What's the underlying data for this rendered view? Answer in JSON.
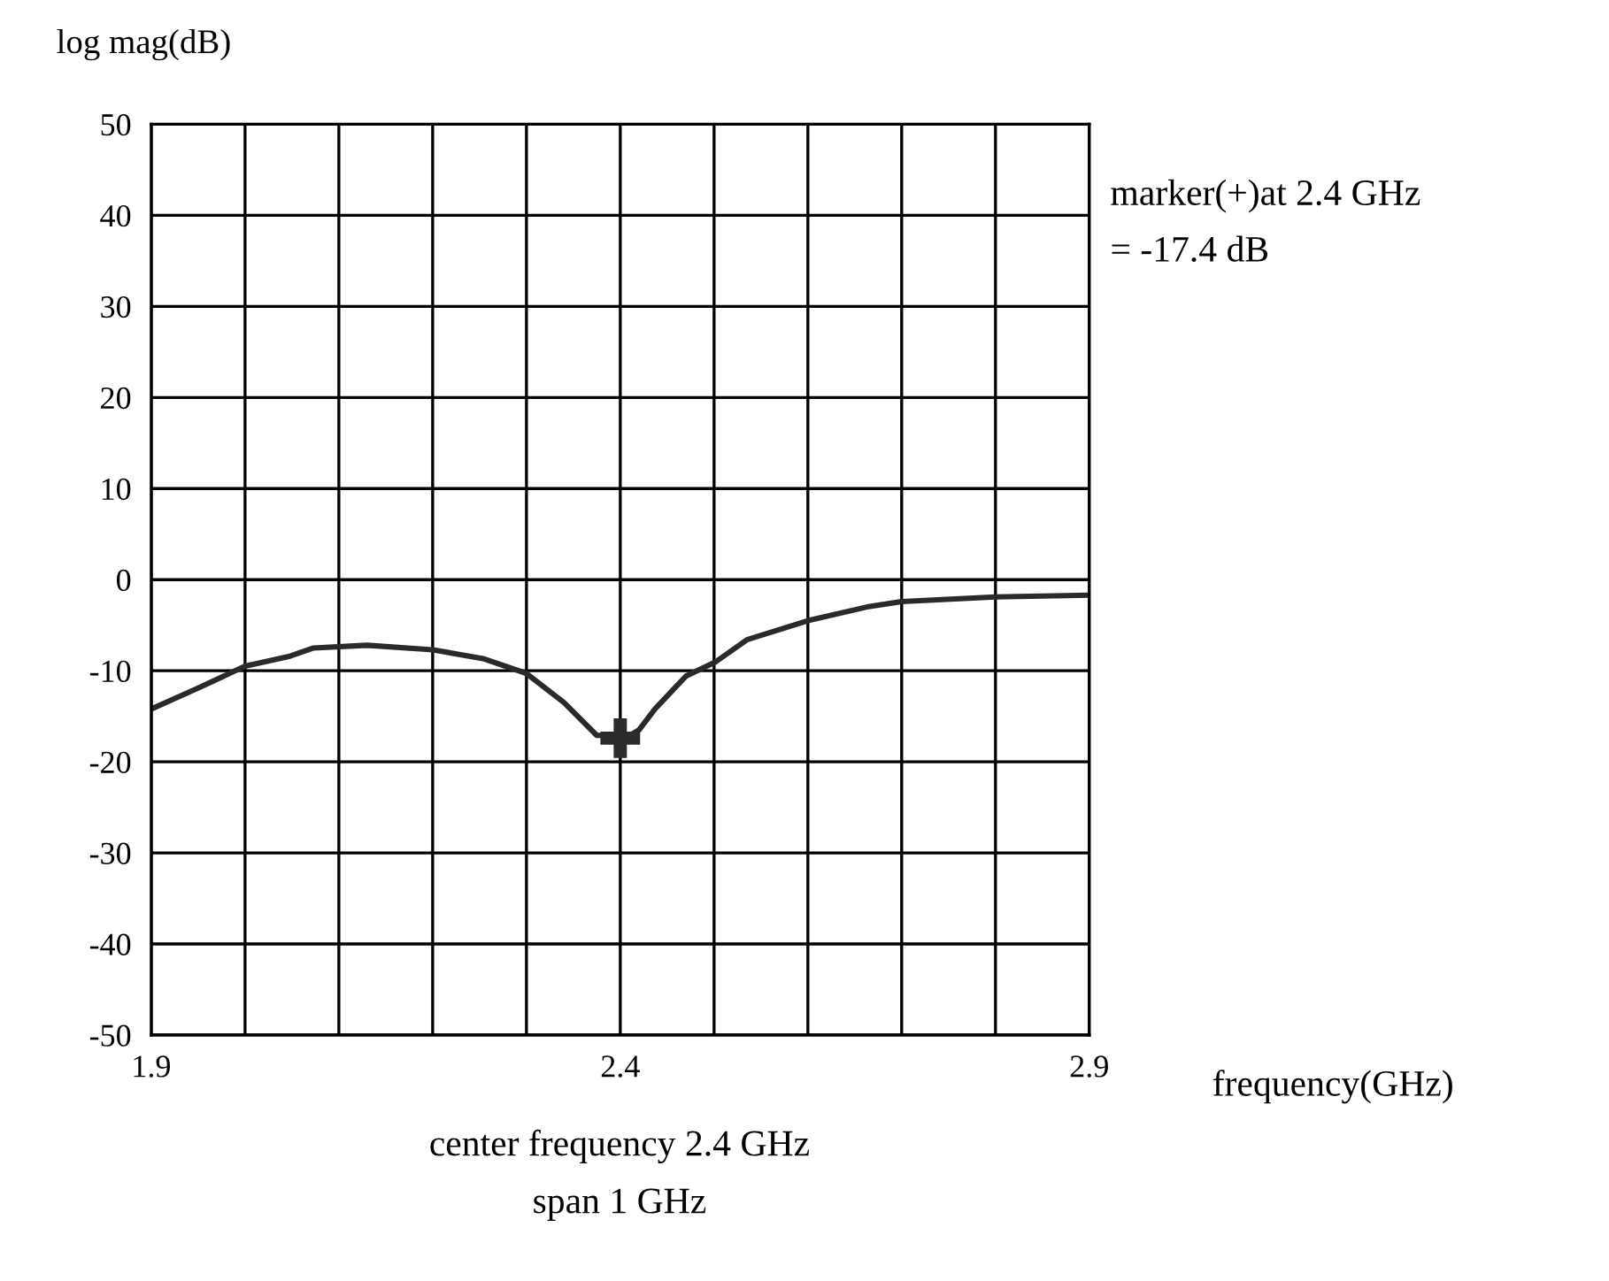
{
  "chart_data": {
    "type": "line",
    "ylabel": "log mag(dB)",
    "xlabel": "frequency(GHz)",
    "annotations": [
      "marker(+)at 2.4 GHz\n= -17.4 dB",
      "center frequency 2.4 GHz",
      "span 1 GHz"
    ],
    "series": [
      {
        "color": "#2a2a2a",
        "x": [
          1.9,
          1.95,
          2.0,
          2.048,
          2.073,
          2.13,
          2.2,
          2.255,
          2.3,
          2.34,
          2.375,
          2.41,
          2.42,
          2.437,
          2.47,
          2.502,
          2.535,
          2.6,
          2.663,
          2.7,
          2.8,
          2.9
        ],
        "values": [
          -14.2,
          -11.9,
          -9.5,
          -8.4,
          -7.5,
          -7.2,
          -7.7,
          -8.7,
          -10.3,
          -13.5,
          -17.1,
          -17.1,
          -16.5,
          -14.2,
          -10.6,
          -9.0,
          -6.6,
          -4.5,
          -3.0,
          -2.4,
          -1.9,
          -1.7
        ]
      },
      {
        "type": "scatter",
        "marker": "cross",
        "color": "#2a2a2a",
        "x": [
          2.4
        ],
        "values": [
          -17.4
        ]
      }
    ],
    "xlim": [
      1.9,
      2.9
    ],
    "ylim": [
      -50,
      50
    ],
    "xticks": [
      1.9,
      {
        "value": 2.0,
        "label": null
      },
      {
        "value": 2.1,
        "label": null
      },
      {
        "value": 2.2,
        "label": null
      },
      {
        "value": 2.3,
        "label": null
      },
      2.4,
      {
        "value": 2.5,
        "label": null
      },
      {
        "value": 2.6,
        "label": null
      },
      {
        "value": 2.7,
        "label": null
      },
      {
        "value": 2.8,
        "label": null
      },
      2.9
    ],
    "yticks": [
      -50,
      -40,
      -30,
      -20,
      -10,
      0,
      10,
      20,
      30,
      40,
      50
    ],
    "grid": true,
    "legend": false
  }
}
